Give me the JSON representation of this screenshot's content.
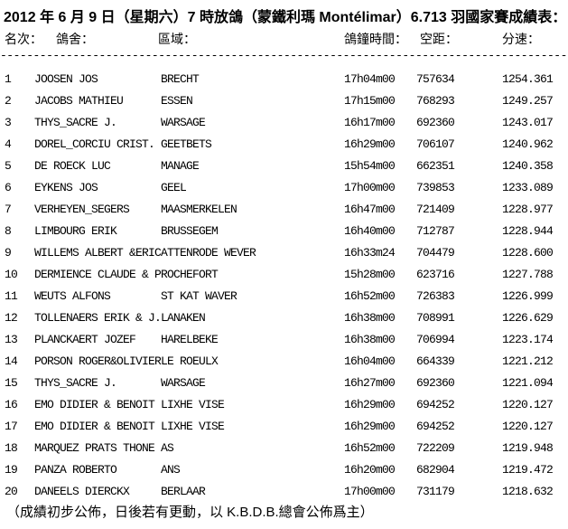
{
  "page": {
    "title": "2012 年 6 月 9 日（星期六）7 時放鴿（蒙鐵利瑪 Montélimar）6.713 羽國家賽成績表：",
    "separator": "------------------------------------------------------------------------------------------",
    "footer": "（成績初步公佈，日後若有更動，以 K.B.D.B.總會公佈爲主）"
  },
  "colors": {
    "text": "#000000",
    "background": "#ffffff"
  },
  "table": {
    "headers": {
      "rank": "名次：",
      "loft": "鴿舍：",
      "region": "區域：",
      "clock_time": "鴿鐘時間：",
      "distance": "空距：",
      "speed": "分速："
    },
    "rows": [
      {
        "rank": "1",
        "loft": "JOOSEN JOS",
        "region": "BRECHT",
        "clock_time": "17h04m00",
        "distance": "757634",
        "speed": "1254.361"
      },
      {
        "rank": "2",
        "loft": "JACOBS MATHIEU",
        "region": "ESSEN",
        "clock_time": "17h15m00",
        "distance": "768293",
        "speed": "1249.257"
      },
      {
        "rank": "3",
        "loft": "THYS_SACRE J.",
        "region": "WARSAGE",
        "clock_time": "16h17m00",
        "distance": "692360",
        "speed": "1243.017"
      },
      {
        "rank": "4",
        "loft": "DOREL_CORCIU CRIST.",
        "region": "GEETBETS",
        "clock_time": "16h29m00",
        "distance": "706107",
        "speed": "1240.962"
      },
      {
        "rank": "5",
        "loft": "DE ROECK LUC",
        "region": "MANAGE",
        "clock_time": "15h54m00",
        "distance": "662351",
        "speed": "1240.358"
      },
      {
        "rank": "6",
        "loft": "EYKENS JOS",
        "region": "GEEL",
        "clock_time": "17h00m00",
        "distance": "739853",
        "speed": "1233.089"
      },
      {
        "rank": "7",
        "loft": "VERHEYEN_SEGERS",
        "region": "MAASMERKELEN",
        "clock_time": "16h47m00",
        "distance": "721409",
        "speed": "1228.977"
      },
      {
        "rank": "8",
        "loft": "LIMBOURG ERIK",
        "region": "BRUSSEGEM",
        "clock_time": "16h40m00",
        "distance": "712787",
        "speed": "1228.944"
      },
      {
        "rank": "9",
        "loft": "WILLEMS ALBERT &ERIC",
        "region": "ATTENRODE WEVER",
        "clock_time": "16h33m24",
        "distance": "704479",
        "speed": "1228.600"
      },
      {
        "rank": "10",
        "loft": "DERMIENCE CLAUDE & P",
        "region": "ROCHEFORT",
        "clock_time": "15h28m00",
        "distance": "623716",
        "speed": "1227.788"
      },
      {
        "rank": "11",
        "loft": "WEUTS ALFONS",
        "region": "ST KAT WAVER",
        "clock_time": "16h52m00",
        "distance": "726383",
        "speed": "1226.999"
      },
      {
        "rank": "12",
        "loft": "TOLLENAERS ERIK & J.",
        "region": "LANAKEN",
        "clock_time": "16h38m00",
        "distance": "708991",
        "speed": "1226.629"
      },
      {
        "rank": "13",
        "loft": "PLANCKAERT JOZEF",
        "region": "HARELBEKE",
        "clock_time": "16h38m00",
        "distance": "706994",
        "speed": "1223.174"
      },
      {
        "rank": "14",
        "loft": "PORSON ROGER&OLIVIER",
        "region": "LE ROEULX",
        "clock_time": "16h04m00",
        "distance": "664339",
        "speed": "1221.212"
      },
      {
        "rank": "15",
        "loft": "THYS_SACRE J.",
        "region": "WARSAGE",
        "clock_time": "16h27m00",
        "distance": "692360",
        "speed": "1221.094"
      },
      {
        "rank": "16",
        "loft": "EMO DIDIER & BENOIT",
        "region": "LIXHE VISE",
        "clock_time": "16h29m00",
        "distance": "694252",
        "speed": "1220.127"
      },
      {
        "rank": "17",
        "loft": "EMO DIDIER & BENOIT",
        "region": "LIXHE VISE",
        "clock_time": "16h29m00",
        "distance": "694252",
        "speed": "1220.127"
      },
      {
        "rank": "18",
        "loft": "MARQUEZ PRATS THONE",
        "region": "AS",
        "clock_time": "16h52m00",
        "distance": "722209",
        "speed": "1219.948"
      },
      {
        "rank": "19",
        "loft": "PANZA ROBERTO",
        "region": "ANS",
        "clock_time": "16h20m00",
        "distance": "682904",
        "speed": "1219.472"
      },
      {
        "rank": "20",
        "loft": "DANEELS DIERCKX",
        "region": "BERLAAR",
        "clock_time": "17h00m00",
        "distance": "731179",
        "speed": "1218.632"
      }
    ]
  }
}
